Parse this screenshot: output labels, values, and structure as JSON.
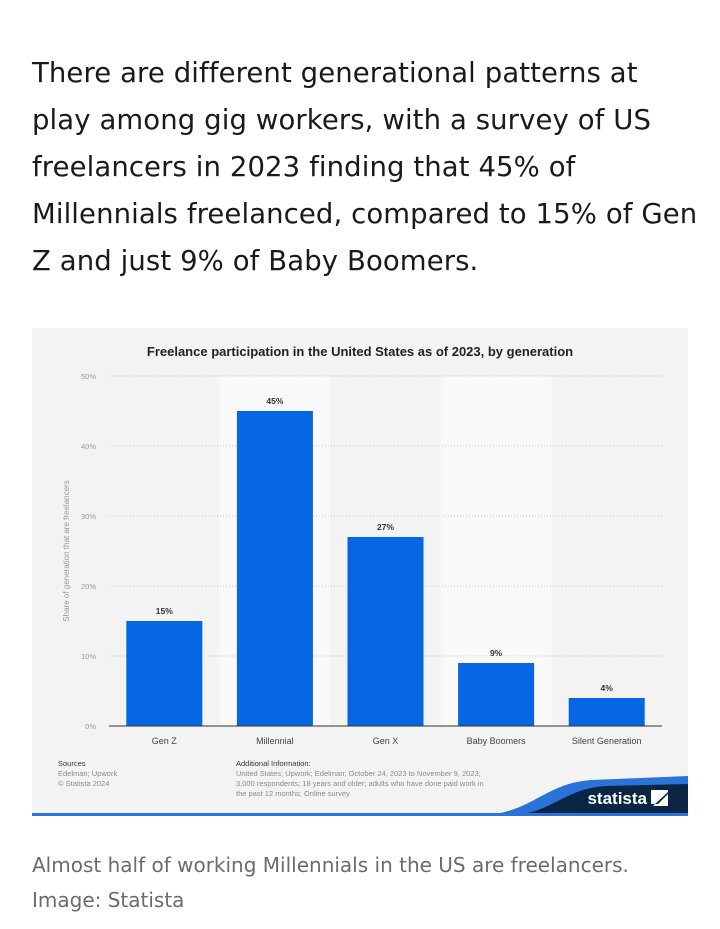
{
  "intro_text": "There are different generational patterns at play among gig workers, with a survey of US freelancers in 2023 finding that 45% of Millennials freelanced, compared to 15% of Gen Z and just 9% of Baby Boomers.",
  "chart_data": {
    "type": "bar",
    "title": "Freelance participation in the United States as of 2023, by generation",
    "categories": [
      "Gen Z",
      "Millennial",
      "Gen X",
      "Baby Boomers",
      "Silent Generation"
    ],
    "values": [
      15,
      45,
      27,
      9,
      4
    ],
    "data_labels": [
      "15%",
      "45%",
      "27%",
      "9%",
      "4%"
    ],
    "xlabel": "",
    "ylabel": "Share of generation that are freelancers",
    "ylim": [
      0,
      50
    ],
    "yticks": [
      "0%",
      "10%",
      "20%",
      "30%",
      "40%",
      "50%"
    ],
    "grid": true,
    "bar_color": "#0766e3"
  },
  "footer": {
    "sources_heading": "Sources",
    "sources_lines": [
      "Edelman; Upwork",
      "© Statista 2024"
    ],
    "additional_heading": "Additional Information:",
    "additional_lines": [
      "United States; Upwork; Edelman; October 24, 2023 to November 9, 2023;",
      "3,000 respondents; 18 years and older; adults who have done paid work in",
      "the past 12 months; Online survey"
    ],
    "logo_text": "statista"
  },
  "caption": {
    "line1": "Almost half of working Millennials in the US are freelancers.",
    "line2": "Image: Statista"
  }
}
